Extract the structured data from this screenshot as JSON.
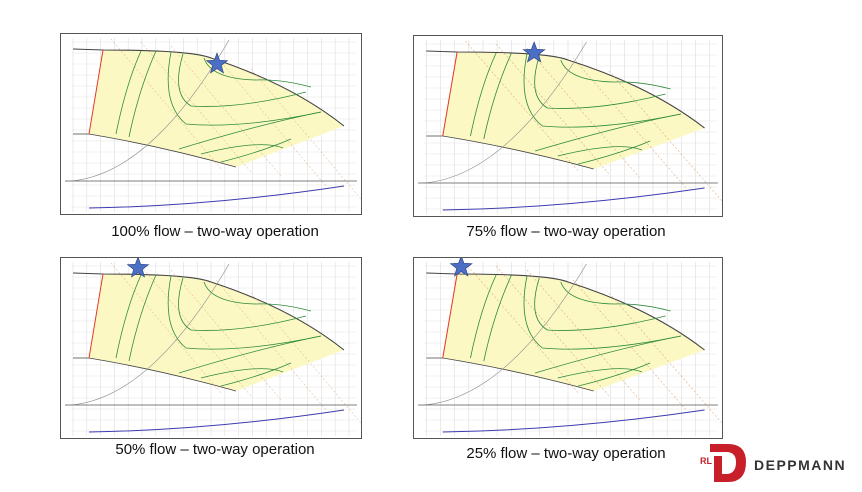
{
  "slide": {
    "charts": [
      {
        "caption": "100% flow – two-way operation",
        "flow_percent": 100,
        "marker_icon": "star-icon"
      },
      {
        "caption": "75% flow – two-way operation",
        "flow_percent": 75,
        "marker_icon": "star-icon"
      },
      {
        "caption": "50% flow – two-way operation",
        "flow_percent": 50,
        "marker_icon": "star-icon"
      },
      {
        "caption": "25% flow – two-way operation",
        "flow_percent": 25,
        "marker_icon": "star-icon"
      }
    ],
    "colors": {
      "operating_region": "#fbf8c4",
      "efficiency_curves": "#2e8b3a",
      "min_flow_line": "#e53a2a",
      "power_curve": "#3b3bb0",
      "marker": "#4a6fc4",
      "brand_red": "#c8202a"
    },
    "logo": {
      "text": "DEPPMANN",
      "mark": "RL"
    }
  }
}
